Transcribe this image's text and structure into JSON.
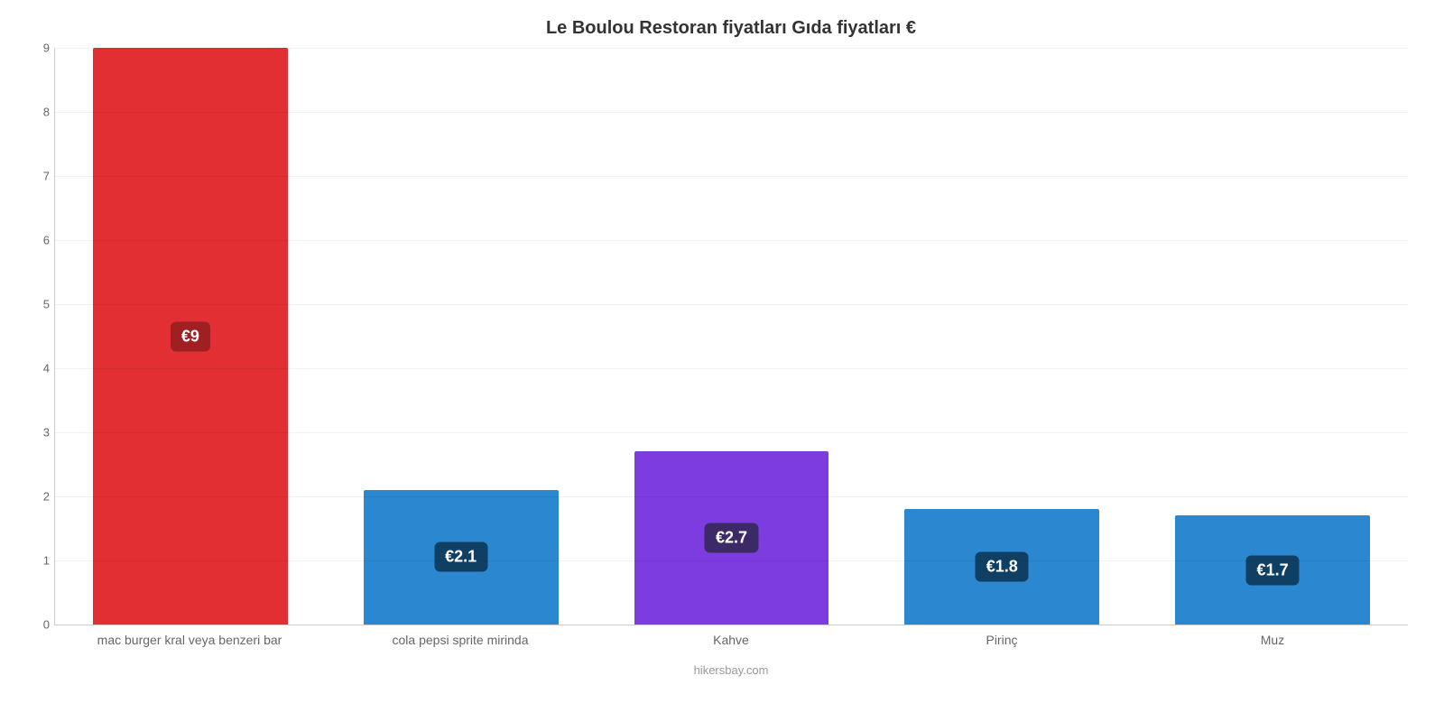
{
  "chart": {
    "type": "bar",
    "title": "Le Boulou Restoran fiyatları Gıda fiyatları €",
    "title_fontsize": 20,
    "title_color": "#333333",
    "footer": "hikersbay.com",
    "footer_color": "#999999",
    "footer_fontsize": 13,
    "background_color": "#ffffff",
    "grid_color": "rgba(0,0,0,0.05)",
    "axis_color": "rgba(0,0,0,0.2)",
    "y": {
      "min": 0,
      "max": 9,
      "ticks": [
        0,
        1,
        2,
        3,
        4,
        5,
        6,
        7,
        8,
        9
      ],
      "tick_fontsize": 13,
      "tick_color": "#666666"
    },
    "x_label_fontsize": 14,
    "x_label_color": "#666666",
    "bar_width_pct": 72,
    "value_badge": {
      "fontsize": 18,
      "radius": 6,
      "text_color": "#ffffff"
    },
    "categories": [
      "mac burger kral veya benzeri bar",
      "cola pepsi sprite mirinda",
      "Kahve",
      "Pirinç",
      "Muz"
    ],
    "series": [
      {
        "value": 9.0,
        "label": "€9",
        "bar_color": "#e12f33",
        "badge_color": "#a01f23"
      },
      {
        "value": 2.1,
        "label": "€2.1",
        "bar_color": "#2a87d0",
        "badge_color": "#0f4064"
      },
      {
        "value": 2.7,
        "label": "€2.7",
        "bar_color": "#7c3ce0",
        "badge_color": "#3c2a66"
      },
      {
        "value": 1.8,
        "label": "€1.8",
        "bar_color": "#2a87d0",
        "badge_color": "#0f4064"
      },
      {
        "value": 1.7,
        "label": "€1.7",
        "bar_color": "#2a87d0",
        "badge_color": "#0f4064"
      }
    ]
  }
}
